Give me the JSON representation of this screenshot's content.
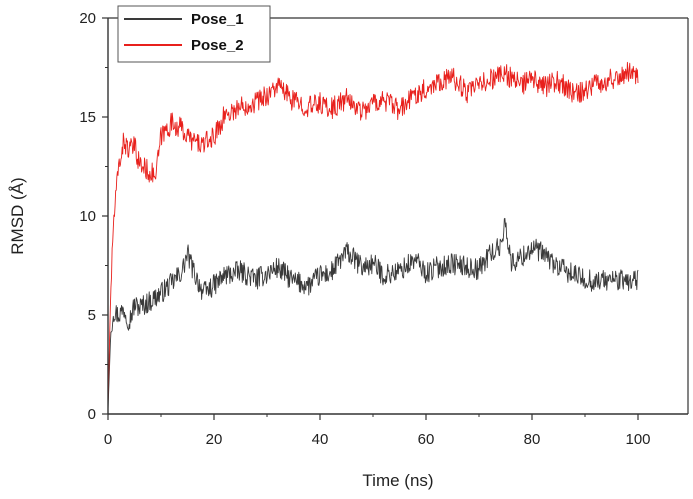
{
  "chart_data": {
    "type": "line",
    "title": "",
    "xlabel": "Time (ns)",
    "ylabel": "RMSD (Å)",
    "xlim": [
      0,
      100
    ],
    "ylim": [
      0,
      20
    ],
    "xticks": [
      "0",
      "20",
      "40",
      "60",
      "80",
      "100"
    ],
    "yticks": [
      "0",
      "5",
      "10",
      "15",
      "20"
    ],
    "grid": false,
    "legend_position": "top-left",
    "series": [
      {
        "name": "Pose_1",
        "color": "#3a3a3a",
        "x": [
          0,
          0.5,
          1,
          2,
          3,
          4,
          5,
          6,
          8,
          10,
          12,
          14,
          15,
          16,
          18,
          20,
          22,
          25,
          28,
          30,
          32,
          35,
          38,
          40,
          42,
          45,
          48,
          50,
          52,
          55,
          58,
          60,
          62,
          65,
          68,
          70,
          72,
          74,
          75,
          76,
          78,
          80,
          82,
          85,
          88,
          90,
          92,
          95,
          98,
          100
        ],
        "values": [
          0.2,
          4.0,
          5.2,
          5.0,
          5.3,
          4.7,
          5.5,
          5.4,
          5.7,
          6.1,
          6.6,
          7.2,
          8.1,
          7.3,
          6.1,
          6.5,
          7.0,
          7.2,
          6.8,
          7.1,
          7.4,
          6.7,
          6.5,
          7.0,
          7.1,
          8.2,
          7.4,
          7.6,
          7.0,
          7.2,
          7.8,
          7.1,
          7.4,
          7.6,
          7.4,
          7.3,
          8.1,
          8.4,
          9.8,
          7.6,
          7.9,
          8.4,
          8.1,
          7.4,
          7.0,
          6.8,
          6.7,
          6.8,
          6.7,
          6.8
        ]
      },
      {
        "name": "Pose_2",
        "color": "#e8201c",
        "x": [
          0,
          0.5,
          1,
          2,
          3,
          4,
          5,
          6,
          8,
          9,
          10,
          12,
          14,
          15,
          16,
          18,
          20,
          22,
          25,
          28,
          30,
          32,
          35,
          38,
          40,
          42,
          45,
          48,
          50,
          52,
          55,
          58,
          60,
          62,
          65,
          68,
          70,
          72,
          75,
          78,
          80,
          82,
          85,
          88,
          90,
          92,
          95,
          98,
          100
        ],
        "values": [
          0.5,
          6.0,
          9.5,
          12.5,
          13.8,
          13.3,
          13.5,
          12.6,
          12.2,
          12.0,
          14.0,
          14.7,
          14.4,
          14.0,
          13.8,
          13.6,
          14.0,
          15.1,
          15.5,
          15.8,
          16.1,
          16.6,
          15.8,
          15.5,
          15.7,
          15.4,
          15.9,
          15.3,
          15.7,
          15.9,
          15.3,
          16.2,
          16.4,
          16.8,
          17.0,
          16.2,
          16.6,
          16.9,
          17.2,
          16.6,
          16.9,
          16.5,
          16.8,
          16.1,
          16.4,
          16.7,
          16.9,
          17.3,
          17.1
        ]
      }
    ]
  }
}
